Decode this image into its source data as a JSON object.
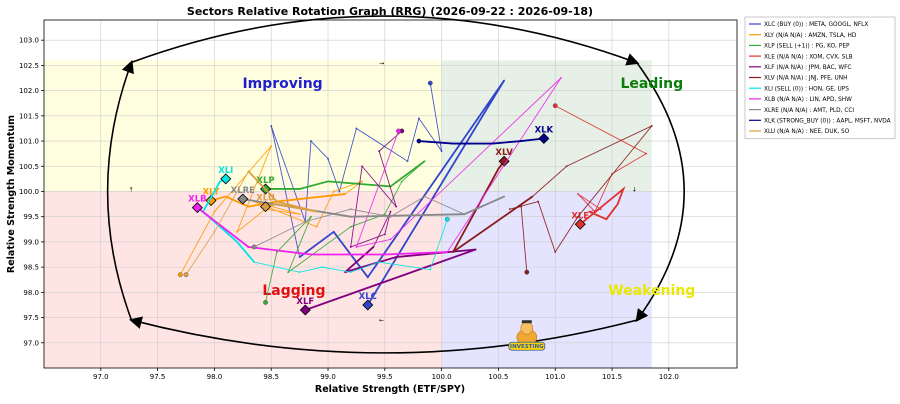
{
  "chart_data": {
    "type": "scatter",
    "title": "Sectors Relative Rotation Graph (RRG) (2026-09-22 : 2026-09-18)",
    "xlabel": "Relative Strength (ETF/SPY)",
    "ylabel": "Relative Strength Momentum",
    "xlim": [
      96.5,
      102.6
    ],
    "ylim": [
      96.5,
      103.4
    ],
    "x_ticks": [
      "97.0",
      "97.5",
      "98.0",
      "98.5",
      "99.0",
      "99.5",
      "100.0",
      "100.5",
      "101.0",
      "101.5",
      "102.0"
    ],
    "y_ticks": [
      "97.0",
      "97.5",
      "98.0",
      "98.5",
      "99.0",
      "99.5",
      "100.0",
      "100.5",
      "101.0",
      "101.5",
      "102.0",
      "102.5",
      "103.0"
    ],
    "grid": true,
    "legend_position": "outside-right",
    "quadrants": [
      {
        "name": "Improving",
        "color": "#1f1fd0"
      },
      {
        "name": "Leading",
        "color": "#0a7d0a"
      },
      {
        "name": "Lagging",
        "color": "#e01010"
      },
      {
        "name": "Weakening",
        "color": "#e8e800"
      }
    ],
    "quadrant_fills": {
      "improving": "#ffffe0",
      "leading": "#e6f0e6",
      "lagging": "#ffe4e4",
      "weakening": "#e4e4ff"
    },
    "series": [
      {
        "ticker": "XLC",
        "name": "XLC (BUY (0)) : META, GOOGL, NFLX",
        "color": "#3344cc",
        "tail": [
          [
            99.9,
            102.15
          ],
          [
            100.0,
            100.8
          ],
          [
            99.8,
            101.45
          ],
          [
            99.7,
            100.6
          ],
          [
            99.25,
            101.25
          ],
          [
            99.1,
            100.0
          ],
          [
            99.0,
            100.65
          ],
          [
            98.85,
            101.0
          ],
          [
            98.8,
            99.4
          ],
          [
            98.5,
            101.3
          ],
          [
            98.75,
            98.7
          ],
          [
            99.05,
            99.2
          ],
          [
            99.35,
            98.3
          ],
          [
            100.55,
            102.2
          ],
          [
            99.35,
            97.75
          ]
        ]
      },
      {
        "ticker": "XLY",
        "name": "XLY (N/A N/A) : AMZN, TSLA, HD",
        "color": "#ff9900",
        "tail": [
          [
            97.7,
            98.35
          ],
          [
            98.0,
            99.6
          ],
          [
            98.5,
            100.9
          ],
          [
            98.2,
            99.2
          ],
          [
            98.45,
            99.65
          ],
          [
            98.75,
            99.55
          ],
          [
            98.35,
            99.8
          ],
          [
            98.9,
            99.3
          ],
          [
            99.05,
            100.0
          ],
          [
            99.3,
            100.2
          ],
          [
            99.15,
            99.95
          ],
          [
            98.55,
            99.8
          ],
          [
            98.3,
            99.7
          ],
          [
            98.1,
            99.9
          ],
          [
            97.97,
            99.82
          ]
        ]
      },
      {
        "ticker": "XLP",
        "name": "XLP (SELL (+1)) : PG, KO, PEP",
        "color": "#33aa33",
        "tail": [
          [
            98.45,
            97.8
          ],
          [
            98.55,
            98.8
          ],
          [
            98.85,
            99.5
          ],
          [
            98.65,
            98.4
          ],
          [
            99.2,
            99.3
          ],
          [
            99.5,
            99.55
          ],
          [
            99.65,
            100.2
          ],
          [
            99.85,
            100.6
          ],
          [
            99.55,
            100.1
          ],
          [
            99.0,
            100.2
          ],
          [
            98.75,
            100.05
          ],
          [
            98.45,
            100.05
          ]
        ]
      },
      {
        "ticker": "XLE",
        "name": "XLE (N/A N/A) : XOM, CVX, SLB",
        "color": "#e03030",
        "tail": [
          [
            101.0,
            101.7
          ],
          [
            101.8,
            100.75
          ],
          [
            101.5,
            100.35
          ],
          [
            101.35,
            99.6
          ],
          [
            101.2,
            99.95
          ],
          [
            101.4,
            99.65
          ],
          [
            101.3,
            99.6
          ],
          [
            101.45,
            99.45
          ],
          [
            101.55,
            99.75
          ],
          [
            101.6,
            100.05
          ],
          [
            101.22,
            99.35
          ]
        ]
      },
      {
        "ticker": "XLF",
        "name": "XLF (N/A N/A) : JPM, BAC, WFC",
        "color": "#800080",
        "tail": [
          [
            99.65,
            101.2
          ],
          [
            99.45,
            100.8
          ],
          [
            99.6,
            99.7
          ],
          [
            99.3,
            100.5
          ],
          [
            99.2,
            98.9
          ],
          [
            99.5,
            99.15
          ],
          [
            99.55,
            99.6
          ],
          [
            99.4,
            98.9
          ],
          [
            99.15,
            98.4
          ],
          [
            99.6,
            98.7
          ],
          [
            100.3,
            98.85
          ],
          [
            98.8,
            97.65
          ]
        ]
      },
      {
        "ticker": "XLV",
        "name": "XLV (N/A N/A) : JNJ, PFE, UNH",
        "color": "#8b1a1a",
        "tail": [
          [
            100.75,
            98.4
          ],
          [
            100.7,
            99.7
          ],
          [
            100.6,
            99.65
          ],
          [
            100.85,
            99.8
          ],
          [
            101.0,
            98.8
          ],
          [
            101.2,
            99.5
          ],
          [
            101.85,
            101.3
          ],
          [
            101.1,
            100.5
          ],
          [
            100.8,
            99.9
          ],
          [
            100.1,
            98.8
          ],
          [
            100.1,
            98.8
          ],
          [
            100.5,
            100.45
          ],
          [
            100.55,
            100.6
          ]
        ]
      },
      {
        "ticker": "XLI",
        "name": "XLI (SELL (0)) : HON, GE, UPS",
        "color": "#00e5e5",
        "tail": [
          [
            100.05,
            99.45
          ],
          [
            99.9,
            98.45
          ],
          [
            99.45,
            98.6
          ],
          [
            99.2,
            98.4
          ],
          [
            98.95,
            98.5
          ],
          [
            98.75,
            98.4
          ],
          [
            98.35,
            98.6
          ],
          [
            98.2,
            99.0
          ],
          [
            97.9,
            99.6
          ],
          [
            98.05,
            100.2
          ],
          [
            98.1,
            100.25
          ]
        ]
      },
      {
        "ticker": "XLB",
        "name": "XLB (N/A N/A) : LIN, APD, SHW",
        "color": "#ee22ee",
        "tail": [
          [
            99.62,
            101.2
          ],
          [
            99.25,
            98.9
          ],
          [
            99.55,
            99.05
          ],
          [
            101.05,
            102.25
          ],
          [
            100.05,
            98.8
          ],
          [
            99.5,
            98.75
          ],
          [
            98.85,
            98.75
          ],
          [
            98.3,
            98.9
          ],
          [
            97.85,
            99.68
          ]
        ]
      },
      {
        "ticker": "XLRE",
        "name": "XLRE (N/A N/A) : AMT, PLD, CCI",
        "color": "#888888",
        "tail": [
          [
            98.35,
            98.9
          ],
          [
            98.8,
            99.4
          ],
          [
            99.2,
            99.65
          ],
          [
            99.55,
            99.5
          ],
          [
            99.85,
            99.9
          ],
          [
            100.2,
            99.55
          ],
          [
            100.55,
            99.9
          ],
          [
            100.2,
            99.55
          ],
          [
            99.2,
            99.5
          ],
          [
            98.25,
            99.85
          ]
        ]
      },
      {
        "ticker": "XLK",
        "name": "XLK (STRONG_BUY (0)) : AAPL, MSFT, NVDA",
        "color": "#00008b",
        "tail": [
          [
            99.8,
            101.0
          ],
          [
            100.1,
            100.95
          ],
          [
            100.45,
            100.95
          ],
          [
            100.7,
            101.0
          ],
          [
            100.9,
            101.05
          ]
        ]
      },
      {
        "ticker": "XLU",
        "name": "XLU (N/A N/A) : NEE, DUK, SO",
        "color": "#d8a040",
        "tail": [
          [
            97.75,
            98.35
          ],
          [
            98.0,
            99.2
          ],
          [
            98.3,
            100.4
          ],
          [
            98.55,
            99.8
          ],
          [
            98.9,
            99.6
          ],
          [
            98.55,
            99.75
          ],
          [
            98.45,
            99.7
          ]
        ]
      }
    ]
  },
  "logo_text": "INVESTING"
}
